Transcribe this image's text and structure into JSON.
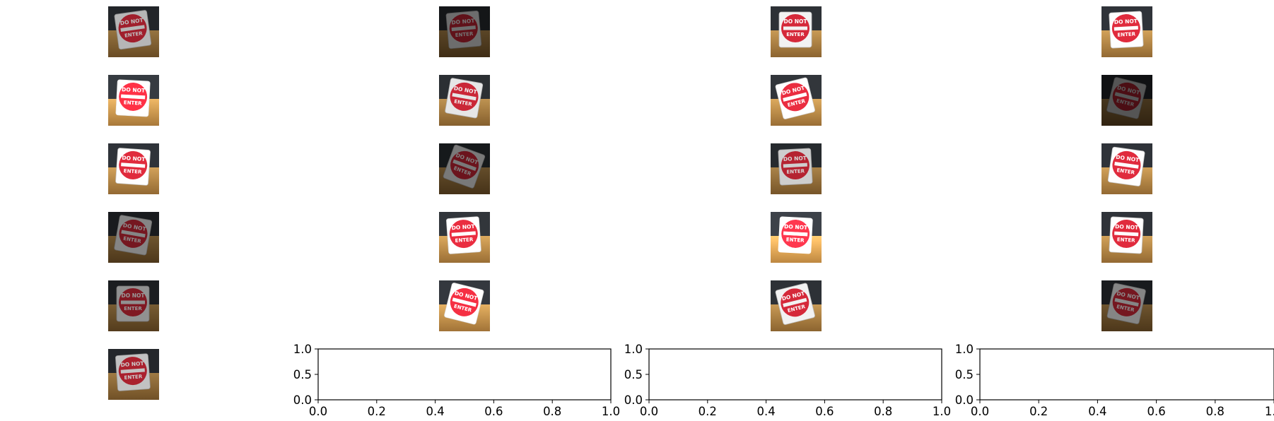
{
  "figure": {
    "image_grid": {
      "columns": 4,
      "rows": 6,
      "subject": "do-not-enter-sign",
      "sign_text": [
        "DO NOT",
        "ENTER"
      ],
      "images": [
        {
          "row": 0,
          "col": 0,
          "brightness": 0.75,
          "rotation": -8
        },
        {
          "row": 0,
          "col": 1,
          "brightness": 0.45,
          "rotation": -5
        },
        {
          "row": 0,
          "col": 2,
          "brightness": 1.0,
          "rotation": 0
        },
        {
          "row": 0,
          "col": 3,
          "brightness": 1.05,
          "rotation": -3
        },
        {
          "row": 1,
          "col": 0,
          "brightness": 1.2,
          "rotation": 3
        },
        {
          "row": 1,
          "col": 1,
          "brightness": 0.95,
          "rotation": 10
        },
        {
          "row": 1,
          "col": 2,
          "brightness": 1.1,
          "rotation": -14
        },
        {
          "row": 1,
          "col": 3,
          "brightness": 0.35,
          "rotation": 14
        },
        {
          "row": 2,
          "col": 0,
          "brightness": 1.05,
          "rotation": 4
        },
        {
          "row": 2,
          "col": 1,
          "brightness": 0.5,
          "rotation": 20
        },
        {
          "row": 2,
          "col": 2,
          "brightness": 0.85,
          "rotation": -3
        },
        {
          "row": 2,
          "col": 3,
          "brightness": 1.05,
          "rotation": 8
        },
        {
          "row": 3,
          "col": 0,
          "brightness": 0.55,
          "rotation": 10
        },
        {
          "row": 3,
          "col": 1,
          "brightness": 1.1,
          "rotation": -4
        },
        {
          "row": 3,
          "col": 2,
          "brightness": 1.35,
          "rotation": 3
        },
        {
          "row": 3,
          "col": 3,
          "brightness": 1.05,
          "rotation": 3
        },
        {
          "row": 4,
          "col": 0,
          "brightness": 0.6,
          "rotation": 0
        },
        {
          "row": 4,
          "col": 1,
          "brightness": 1.15,
          "rotation": 14
        },
        {
          "row": 4,
          "col": 2,
          "brightness": 1.0,
          "rotation": -14
        },
        {
          "row": 4,
          "col": 3,
          "brightness": 0.55,
          "rotation": 12
        },
        {
          "row": 5,
          "col": 0,
          "brightness": 0.8,
          "rotation": -4
        }
      ]
    },
    "colors": {
      "sign_red": "#d5293a",
      "sign_white": "#f2f2f2",
      "table_wood": "#b88a4a",
      "background_dark": "#2d3136",
      "axis": "#000000"
    }
  },
  "chart_data": [
    {
      "type": "scatter",
      "position": "row-6-col-2",
      "series": [],
      "xlim": [
        0.0,
        1.0
      ],
      "ylim": [
        0.0,
        1.0
      ],
      "xticks": [
        "0.0",
        "0.2",
        "0.4",
        "0.6",
        "0.8",
        "1.0"
      ],
      "yticks": [
        "0.0",
        "0.5",
        "1.0"
      ],
      "title": "",
      "xlabel": "",
      "ylabel": "",
      "grid": false
    },
    {
      "type": "scatter",
      "position": "row-6-col-3",
      "series": [],
      "xlim": [
        0.0,
        1.0
      ],
      "ylim": [
        0.0,
        1.0
      ],
      "xticks": [
        "0.0",
        "0.2",
        "0.4",
        "0.6",
        "0.8",
        "1.0"
      ],
      "yticks": [
        "0.0",
        "0.5",
        "1.0"
      ],
      "title": "",
      "xlabel": "",
      "ylabel": "",
      "grid": false
    },
    {
      "type": "scatter",
      "position": "row-6-col-4",
      "series": [],
      "xlim": [
        0.0,
        1.0
      ],
      "ylim": [
        0.0,
        1.0
      ],
      "xticks": [
        "0.0",
        "0.2",
        "0.4",
        "0.6",
        "0.8",
        "1.0"
      ],
      "yticks": [
        "0.0",
        "0.5",
        "1.0"
      ],
      "title": "",
      "xlabel": "",
      "ylabel": "",
      "grid": false
    }
  ]
}
